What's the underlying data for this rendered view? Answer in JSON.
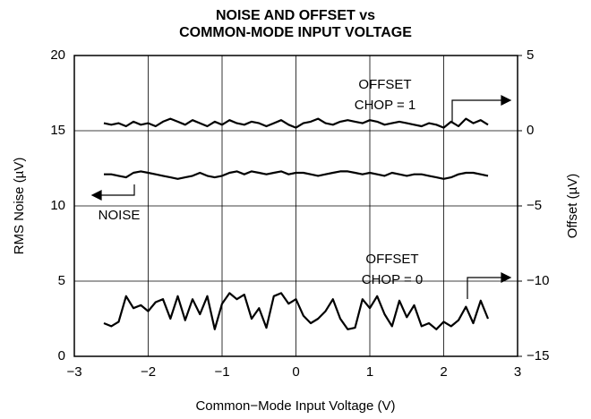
{
  "chart_data": {
    "type": "line",
    "title": [
      "NOISE AND OFFSET vs",
      "COMMON-MODE INPUT VOLTAGE"
    ],
    "x_label": "Common−Mode Input Voltage (V)",
    "y_label": "RMS Noise (µV)",
    "y2_label": "Offset (µV)",
    "xlim": [
      -3,
      3
    ],
    "xticks": [
      {
        "value": -3,
        "label": "−3"
      },
      {
        "value": -2,
        "label": "−2"
      },
      {
        "value": -1,
        "label": "−1"
      },
      0,
      1,
      2,
      3
    ],
    "ylim": [
      0,
      20
    ],
    "yticks": [
      0,
      5,
      10,
      15,
      20
    ],
    "y2lim": [
      -15,
      5
    ],
    "y2ticks": [
      {
        "value": -15,
        "label": "−15"
      },
      {
        "value": -10,
        "label": "−10"
      },
      {
        "value": -5,
        "label": "−5"
      },
      0,
      5
    ],
    "grid": true,
    "x": [
      -2.6,
      -2.5,
      -2.4,
      -2.3,
      -2.2,
      -2.1,
      -2.0,
      -1.9,
      -1.8,
      -1.7,
      -1.6,
      -1.5,
      -1.4,
      -1.3,
      -1.2,
      -1.1,
      -1.0,
      -0.9,
      -0.8,
      -0.7,
      -0.6,
      -0.5,
      -0.4,
      -0.3,
      -0.2,
      -0.1,
      0.0,
      0.1,
      0.2,
      0.3,
      0.4,
      0.5,
      0.6,
      0.7,
      0.8,
      0.9,
      1.0,
      1.1,
      1.2,
      1.3,
      1.4,
      1.5,
      1.6,
      1.7,
      1.8,
      1.9,
      2.0,
      2.1,
      2.2,
      2.3,
      2.4,
      2.5,
      2.6
    ],
    "series": [
      {
        "name": "NOISE",
        "color": "#000000",
        "axis": "y",
        "values": [
          12.1,
          12.1,
          12.0,
          11.9,
          12.2,
          12.3,
          12.2,
          12.1,
          12.0,
          11.9,
          11.8,
          11.9,
          12.0,
          12.2,
          12.0,
          11.9,
          12.0,
          12.2,
          12.3,
          12.1,
          12.3,
          12.2,
          12.1,
          12.2,
          12.3,
          12.1,
          12.2,
          12.2,
          12.1,
          12.0,
          12.1,
          12.2,
          12.3,
          12.3,
          12.2,
          12.1,
          12.2,
          12.1,
          12.0,
          12.2,
          12.1,
          12.0,
          12.1,
          12.1,
          12.0,
          11.9,
          11.8,
          11.9,
          12.1,
          12.2,
          12.2,
          12.1,
          12.0
        ]
      },
      {
        "name": "CHOP = 1",
        "color": "#000000",
        "axis": "y2",
        "values": [
          0.5,
          0.4,
          0.5,
          0.3,
          0.6,
          0.4,
          0.5,
          0.3,
          0.6,
          0.8,
          0.6,
          0.4,
          0.7,
          0.5,
          0.3,
          0.6,
          0.4,
          0.7,
          0.5,
          0.4,
          0.6,
          0.5,
          0.3,
          0.5,
          0.7,
          0.4,
          0.2,
          0.5,
          0.6,
          0.8,
          0.5,
          0.4,
          0.6,
          0.7,
          0.6,
          0.5,
          0.7,
          0.6,
          0.4,
          0.5,
          0.6,
          0.5,
          0.4,
          0.3,
          0.5,
          0.4,
          0.2,
          0.6,
          0.3,
          0.8,
          0.5,
          0.7,
          0.4
        ]
      },
      {
        "name": "CHOP = 0",
        "color": "#000000",
        "axis": "y2",
        "values": [
          -12.8,
          -13.0,
          -12.7,
          -11.0,
          -11.8,
          -11.6,
          -12.0,
          -11.4,
          -11.2,
          -12.5,
          -11.0,
          -12.6,
          -11.2,
          -12.2,
          -11.0,
          -13.2,
          -11.5,
          -10.8,
          -11.2,
          -10.9,
          -12.5,
          -11.8,
          -13.1,
          -11.0,
          -10.8,
          -11.5,
          -11.2,
          -12.3,
          -12.8,
          -12.5,
          -12.0,
          -11.2,
          -12.5,
          -13.2,
          -13.1,
          -11.2,
          -11.8,
          -11.0,
          -12.2,
          -13.0,
          -11.3,
          -12.4,
          -11.6,
          -13.0,
          -12.8,
          -13.2,
          -12.7,
          -13.0,
          -12.6,
          -11.7,
          -12.8,
          -11.3,
          -12.5
        ]
      }
    ],
    "annotations": [
      "OFFSET",
      "OFFSET"
    ]
  }
}
